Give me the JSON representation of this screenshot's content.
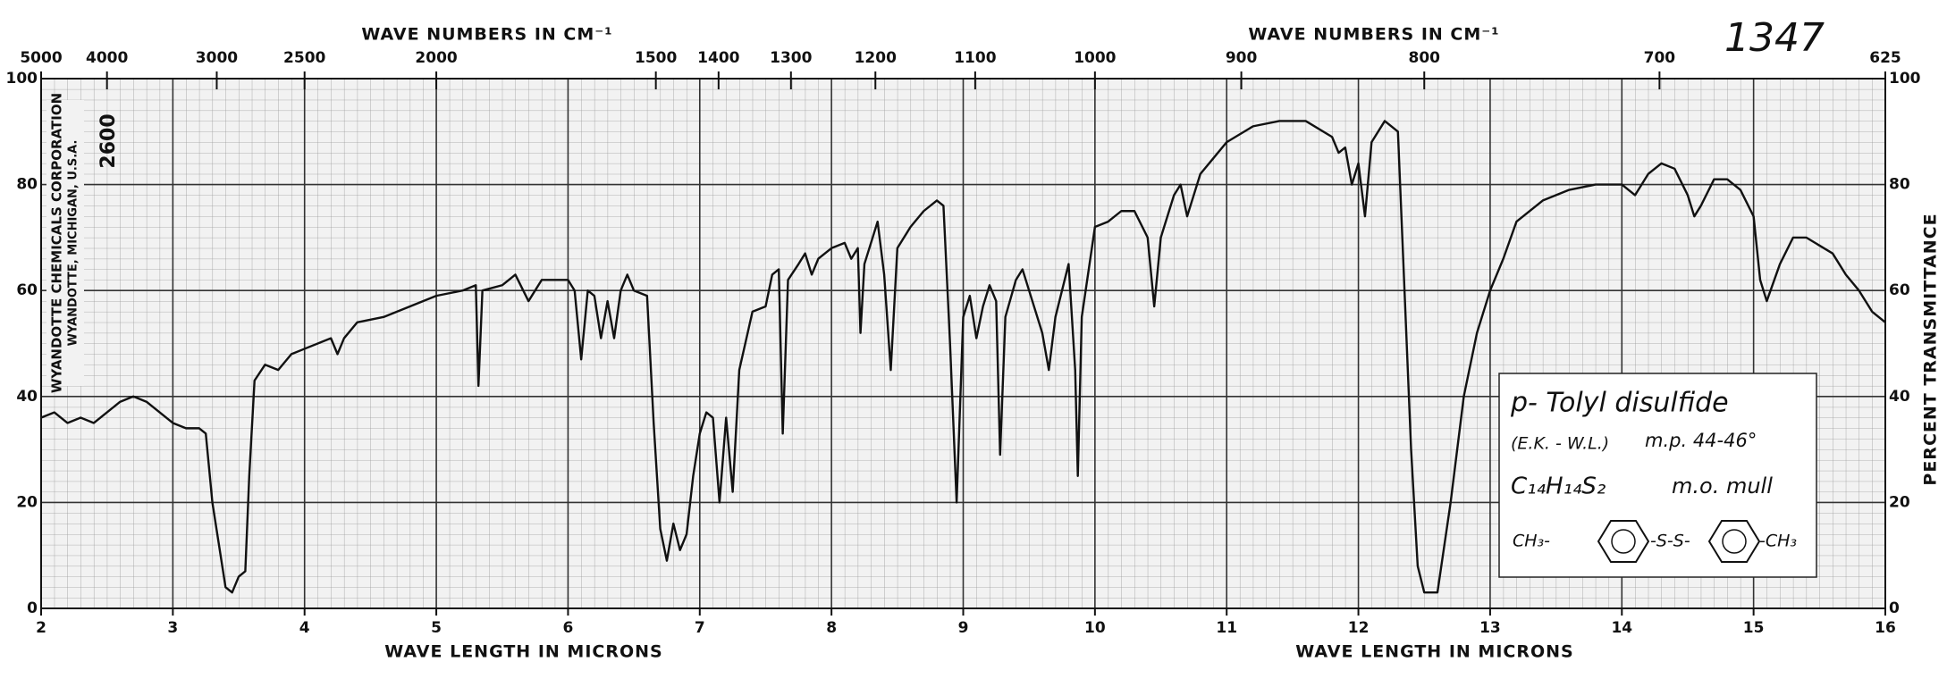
{
  "chart_data": {
    "type": "line",
    "x_axis_label": "WAVE LENGTH IN MICRONS",
    "x2_axis_label": "WAVE NUMBERS IN CM⁻¹",
    "y_axis_label": "PERCENT TRANSMITTANCE",
    "spectrum_number": "1347",
    "publisher": [
      "WYANDOTTE CHEMICALS CORPORATION",
      "WYANDOTTE, MICHIGAN, U.S.A."
    ],
    "sample_code": "2600",
    "annotation": {
      "name": "p- Tolyl disulfide",
      "source": "(E.K. - W.L.)",
      "melting_point": "m.p. 44-46°",
      "formula": "C₁₄H₁₄S₂",
      "method": "m.o. mull",
      "structure": [
        "CH₃-",
        "-S-S-",
        "-CH₃"
      ]
    },
    "color": "#111111",
    "x": [
      2.0,
      2.1,
      2.2,
      2.3,
      2.4,
      2.5,
      2.6,
      2.7,
      2.8,
      2.9,
      3.0,
      3.1,
      3.2,
      3.25,
      3.3,
      3.35,
      3.4,
      3.45,
      3.5,
      3.55,
      3.58,
      3.62,
      3.7,
      3.8,
      3.9,
      4.0,
      4.2,
      4.25,
      4.3,
      4.4,
      4.6,
      4.8,
      5.0,
      5.2,
      5.3,
      5.32,
      5.35,
      5.5,
      5.6,
      5.7,
      5.8,
      6.0,
      6.05,
      6.1,
      6.15,
      6.2,
      6.25,
      6.3,
      6.35,
      6.4,
      6.45,
      6.5,
      6.6,
      6.65,
      6.7,
      6.75,
      6.8,
      6.85,
      6.9,
      6.95,
      7.0,
      7.05,
      7.1,
      7.15,
      7.2,
      7.25,
      7.3,
      7.4,
      7.5,
      7.55,
      7.6,
      7.63,
      7.67,
      7.75,
      7.8,
      7.85,
      7.9,
      8.0,
      8.1,
      8.15,
      8.2,
      8.22,
      8.25,
      8.35,
      8.4,
      8.45,
      8.5,
      8.6,
      8.7,
      8.8,
      8.85,
      8.9,
      8.95,
      9.0,
      9.05,
      9.1,
      9.15,
      9.2,
      9.25,
      9.28,
      9.32,
      9.4,
      9.45,
      9.5,
      9.6,
      9.65,
      9.7,
      9.8,
      9.85,
      9.87,
      9.9,
      10.0,
      10.1,
      10.2,
      10.3,
      10.4,
      10.45,
      10.5,
      10.6,
      10.65,
      10.7,
      10.8,
      10.9,
      11.0,
      11.2,
      11.4,
      11.6,
      11.8,
      11.85,
      11.9,
      11.95,
      12.0,
      12.05,
      12.1,
      12.2,
      12.3,
      12.35,
      12.4,
      12.45,
      12.5,
      12.6,
      12.7,
      12.8,
      12.9,
      13.0,
      13.1,
      13.2,
      13.4,
      13.6,
      13.8,
      14.0,
      14.1,
      14.2,
      14.3,
      14.4,
      14.5,
      14.55,
      14.6,
      14.7,
      14.8,
      14.9,
      15.0,
      15.05,
      15.1,
      15.2,
      15.3,
      15.4,
      15.6,
      15.7,
      15.8,
      15.9,
      16.0
    ],
    "values": [
      36,
      37,
      35,
      36,
      35,
      37,
      39,
      40,
      39,
      37,
      35,
      34,
      34,
      33,
      20,
      12,
      4,
      3,
      6,
      7,
      25,
      43,
      46,
      45,
      48,
      49,
      51,
      48,
      51,
      54,
      55,
      57,
      59,
      60,
      61,
      42,
      60,
      61,
      63,
      58,
      62,
      62,
      60,
      47,
      60,
      59,
      51,
      58,
      51,
      60,
      63,
      60,
      59,
      35,
      15,
      9,
      16,
      11,
      14,
      25,
      33,
      37,
      36,
      20,
      36,
      22,
      45,
      56,
      57,
      63,
      64,
      33,
      62,
      65,
      67,
      63,
      66,
      68,
      69,
      66,
      68,
      52,
      65,
      73,
      63,
      45,
      68,
      72,
      75,
      77,
      76,
      50,
      20,
      55,
      59,
      51,
      57,
      61,
      58,
      29,
      55,
      62,
      64,
      60,
      52,
      45,
      55,
      65,
      45,
      25,
      55,
      72,
      73,
      75,
      75,
      70,
      57,
      70,
      78,
      80,
      74,
      82,
      85,
      88,
      91,
      92,
      92,
      89,
      86,
      87,
      80,
      84,
      74,
      88,
      92,
      90,
      60,
      30,
      8,
      3,
      3,
      20,
      40,
      52,
      60,
      66,
      73,
      77,
      79,
      80,
      80,
      78,
      82,
      84,
      83,
      78,
      74,
      76,
      81,
      81,
      79,
      74,
      62,
      58,
      65,
      70,
      70,
      67,
      63,
      60,
      56,
      54
    ],
    "xlim": [
      2,
      16
    ],
    "xticks": [
      2,
      3,
      4,
      5,
      6,
      7,
      8,
      9,
      10,
      11,
      12,
      13,
      14,
      15,
      16
    ],
    "x2ticks": [
      5000,
      4000,
      3000,
      2500,
      2000,
      1500,
      1400,
      1300,
      1200,
      1100,
      1000,
      900,
      800,
      700,
      625
    ],
    "ylim": [
      0,
      100
    ],
    "yticks": [
      0,
      20,
      40,
      60,
      80,
      100
    ],
    "grid": true
  }
}
